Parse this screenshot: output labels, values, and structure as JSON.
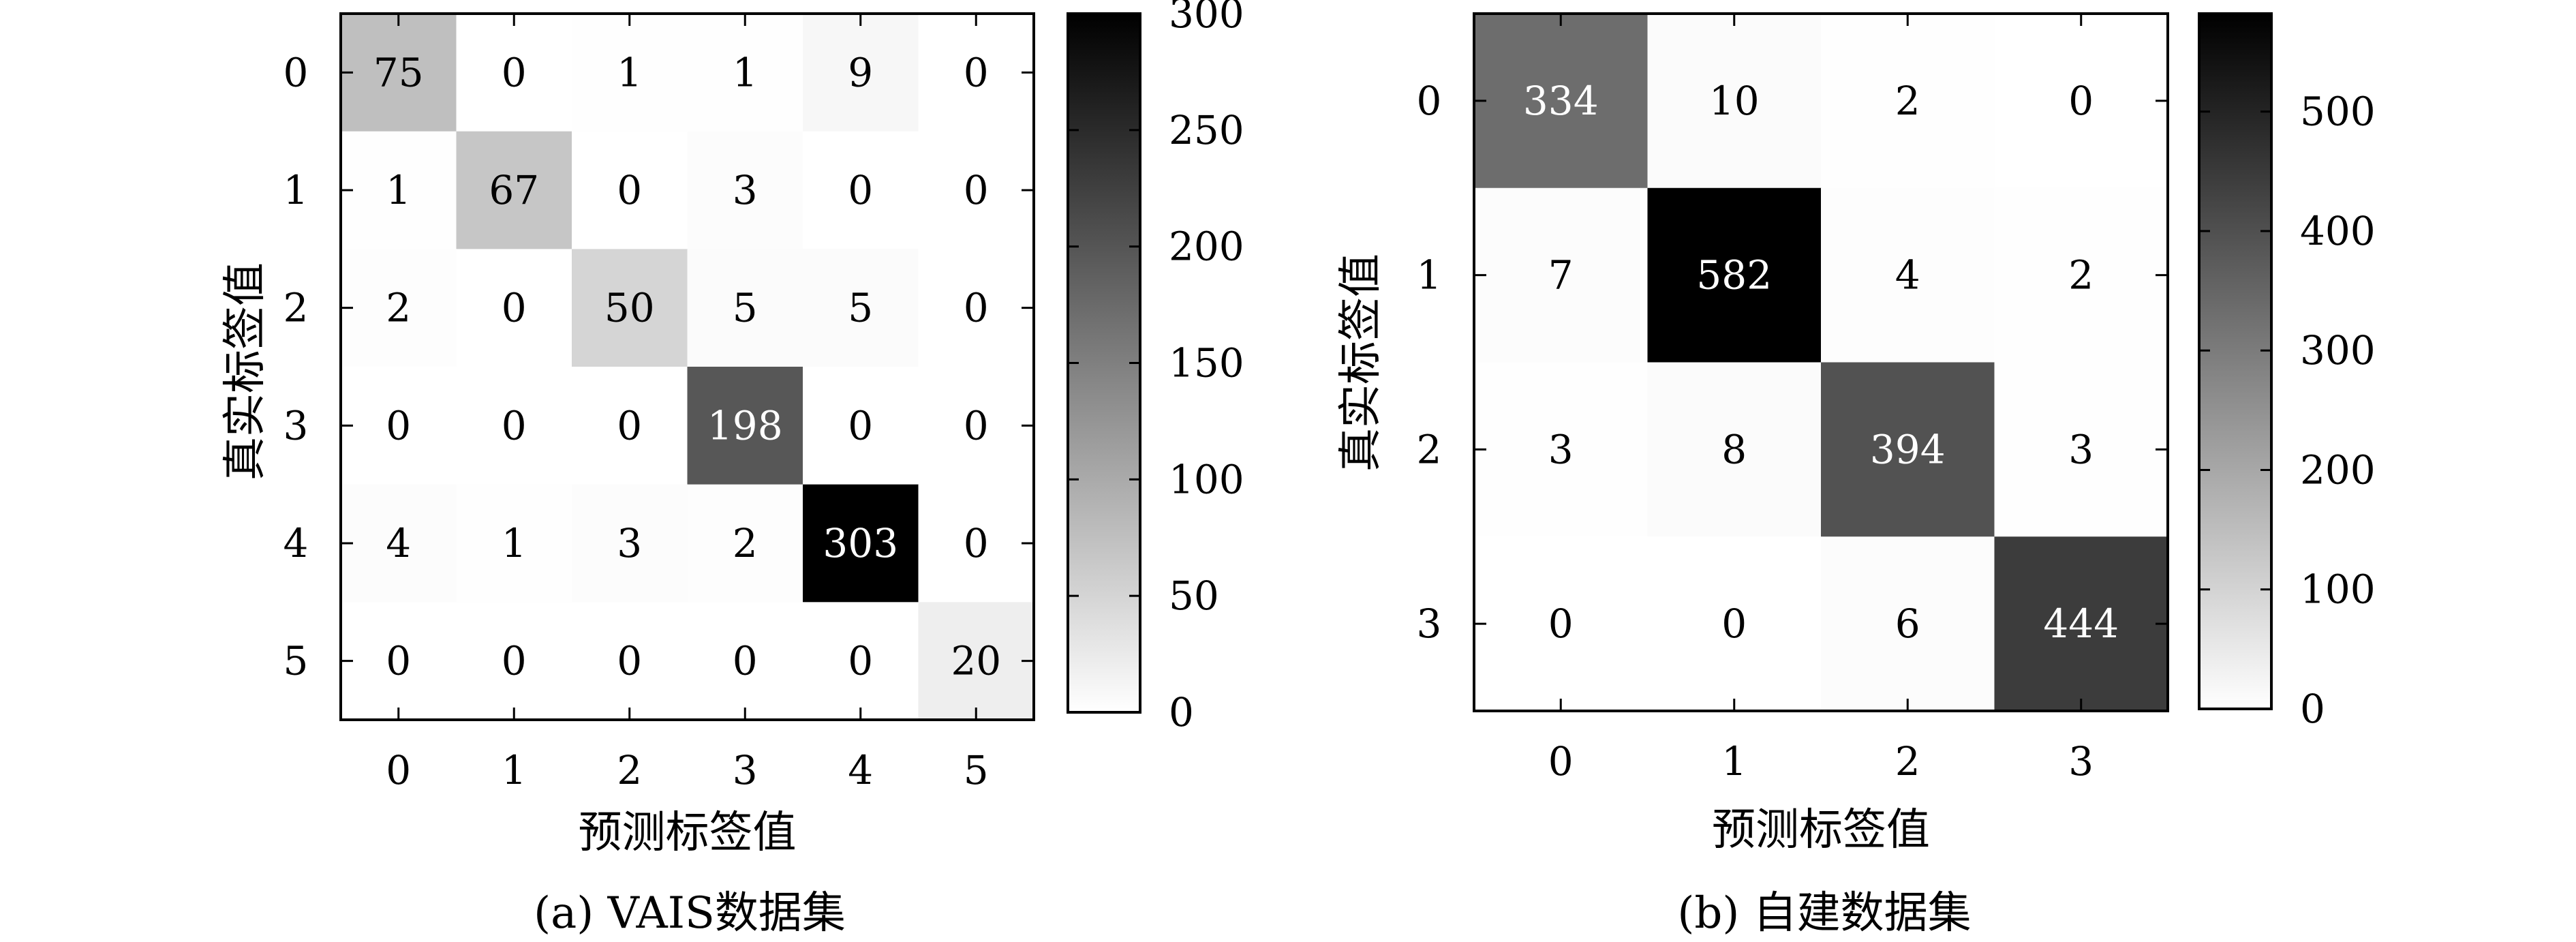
{
  "chart_data": [
    {
      "type": "heatmap",
      "caption": "(a) VAIS数据集",
      "xlabel": "预测标签值",
      "ylabel": "真实标签值",
      "x_ticks": [
        "0",
        "1",
        "2",
        "3",
        "4",
        "5"
      ],
      "y_ticks": [
        "0",
        "1",
        "2",
        "3",
        "4",
        "5"
      ],
      "matrix": [
        [
          75,
          0,
          1,
          1,
          9,
          0
        ],
        [
          1,
          67,
          0,
          3,
          0,
          0
        ],
        [
          2,
          0,
          50,
          5,
          5,
          0
        ],
        [
          0,
          0,
          0,
          198,
          0,
          0
        ],
        [
          4,
          1,
          3,
          2,
          303,
          0
        ],
        [
          0,
          0,
          0,
          0,
          0,
          20
        ]
      ],
      "colormap": "gray-reversed",
      "colorbar": {
        "range": [
          0,
          300
        ],
        "ticks": [
          0,
          50,
          100,
          150,
          200,
          250,
          300
        ],
        "tick_labels": [
          "0",
          "50",
          "100",
          "150",
          "200",
          "250",
          "300"
        ]
      }
    },
    {
      "type": "heatmap",
      "caption": "(b) 自建数据集",
      "xlabel": "预测标签值",
      "ylabel": "真实标签值",
      "x_ticks": [
        "0",
        "1",
        "2",
        "3"
      ],
      "y_ticks": [
        "0",
        "1",
        "2",
        "3"
      ],
      "matrix": [
        [
          334,
          10,
          2,
          0
        ],
        [
          7,
          582,
          4,
          2
        ],
        [
          3,
          8,
          394,
          3
        ],
        [
          0,
          0,
          6,
          444
        ]
      ],
      "colormap": "gray-reversed",
      "colorbar": {
        "range": [
          0,
          582
        ],
        "ticks": [
          0,
          100,
          200,
          300,
          400,
          500
        ],
        "tick_labels": [
          "0",
          "100",
          "200",
          "300",
          "400",
          "500"
        ]
      }
    }
  ]
}
